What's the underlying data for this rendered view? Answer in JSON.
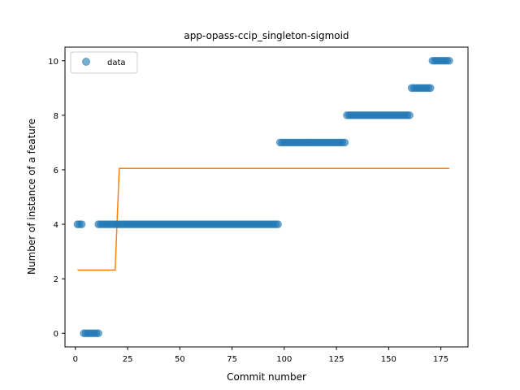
{
  "chart_data": {
    "type": "scatter",
    "title": "app-opass-ccip_singleton-sigmoid",
    "xlabel": "Commit number",
    "ylabel": "Number of instance of a feature",
    "xlim": [
      -5,
      188
    ],
    "ylim": [
      -0.5,
      10.5
    ],
    "xticks": [
      0,
      25,
      50,
      75,
      100,
      125,
      150,
      175
    ],
    "yticks": [
      0,
      2,
      4,
      6,
      8,
      10
    ],
    "grid": false,
    "legend_position": "top-left",
    "series": [
      {
        "name": "data",
        "kind": "scatter",
        "color": "#1f77b4",
        "segments": [
          {
            "x_start": 1,
            "x_end": 3,
            "y": 4
          },
          {
            "x_start": 4,
            "x_end": 11,
            "y": 0
          },
          {
            "x_start": 11,
            "x_end": 97,
            "y": 4
          },
          {
            "x_start": 98,
            "x_end": 129,
            "y": 7
          },
          {
            "x_start": 130,
            "x_end": 160,
            "y": 8
          },
          {
            "x_start": 161,
            "x_end": 170,
            "y": 9
          },
          {
            "x_start": 171,
            "x_end": 179,
            "y": 10
          }
        ]
      },
      {
        "kind": "line",
        "color": "#ff7f0e",
        "x": [
          1,
          19,
          21,
          179
        ],
        "y": [
          2.32,
          2.32,
          6.05,
          6.05
        ]
      }
    ]
  }
}
